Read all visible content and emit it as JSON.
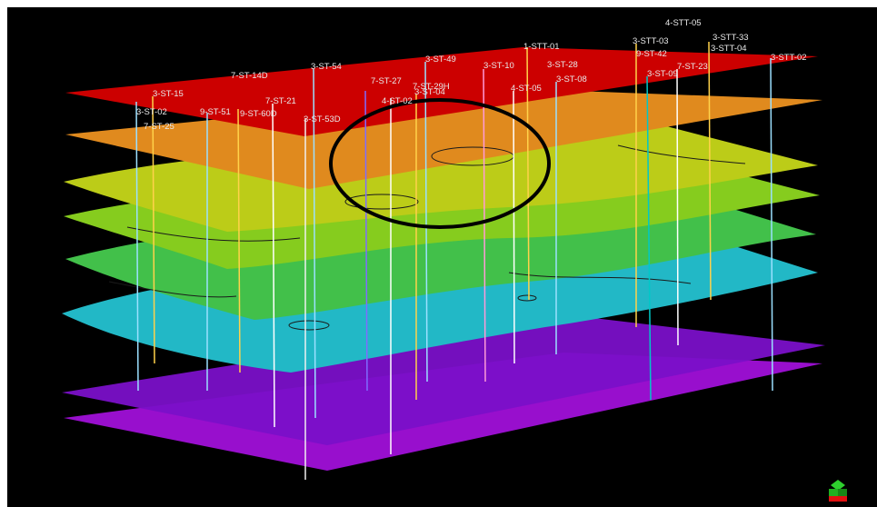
{
  "viewer": {
    "background": "#000000",
    "horizon_colors": [
      "#cc0000",
      "#e08a1e",
      "#c2cc18",
      "#7ccc1a",
      "#3cc23e",
      "#20b8c8",
      "#7a10c8",
      "#a010d8"
    ],
    "orientation_widget": "axis-cube-icon"
  },
  "wells": [
    {
      "name": "4-STT-05"
    },
    {
      "name": "3-STT-33"
    },
    {
      "name": "1-STT-01"
    },
    {
      "name": "3-STT-03"
    },
    {
      "name": "3-STT-04"
    },
    {
      "name": "3-ST-49"
    },
    {
      "name": "3-ST-54"
    },
    {
      "name": "3-ST-10"
    },
    {
      "name": "3-ST-28"
    },
    {
      "name": "9-ST-42"
    },
    {
      "name": "3-STT-02"
    },
    {
      "name": "7-ST-14D"
    },
    {
      "name": "7-ST-23"
    },
    {
      "name": "3-ST-09"
    },
    {
      "name": "3-ST-15"
    },
    {
      "name": "7-ST-27"
    },
    {
      "name": "7-ST-29H"
    },
    {
      "name": "3-ST-08"
    },
    {
      "name": "7-ST-21"
    },
    {
      "name": "3-ST-04"
    },
    {
      "name": "4-ST-05"
    },
    {
      "name": "3-ST-02"
    },
    {
      "name": "9-ST-51"
    },
    {
      "name": "9-ST-60D"
    },
    {
      "name": "3-ST-53D"
    },
    {
      "name": "4-ST-02"
    },
    {
      "name": "7-ST-25"
    }
  ]
}
